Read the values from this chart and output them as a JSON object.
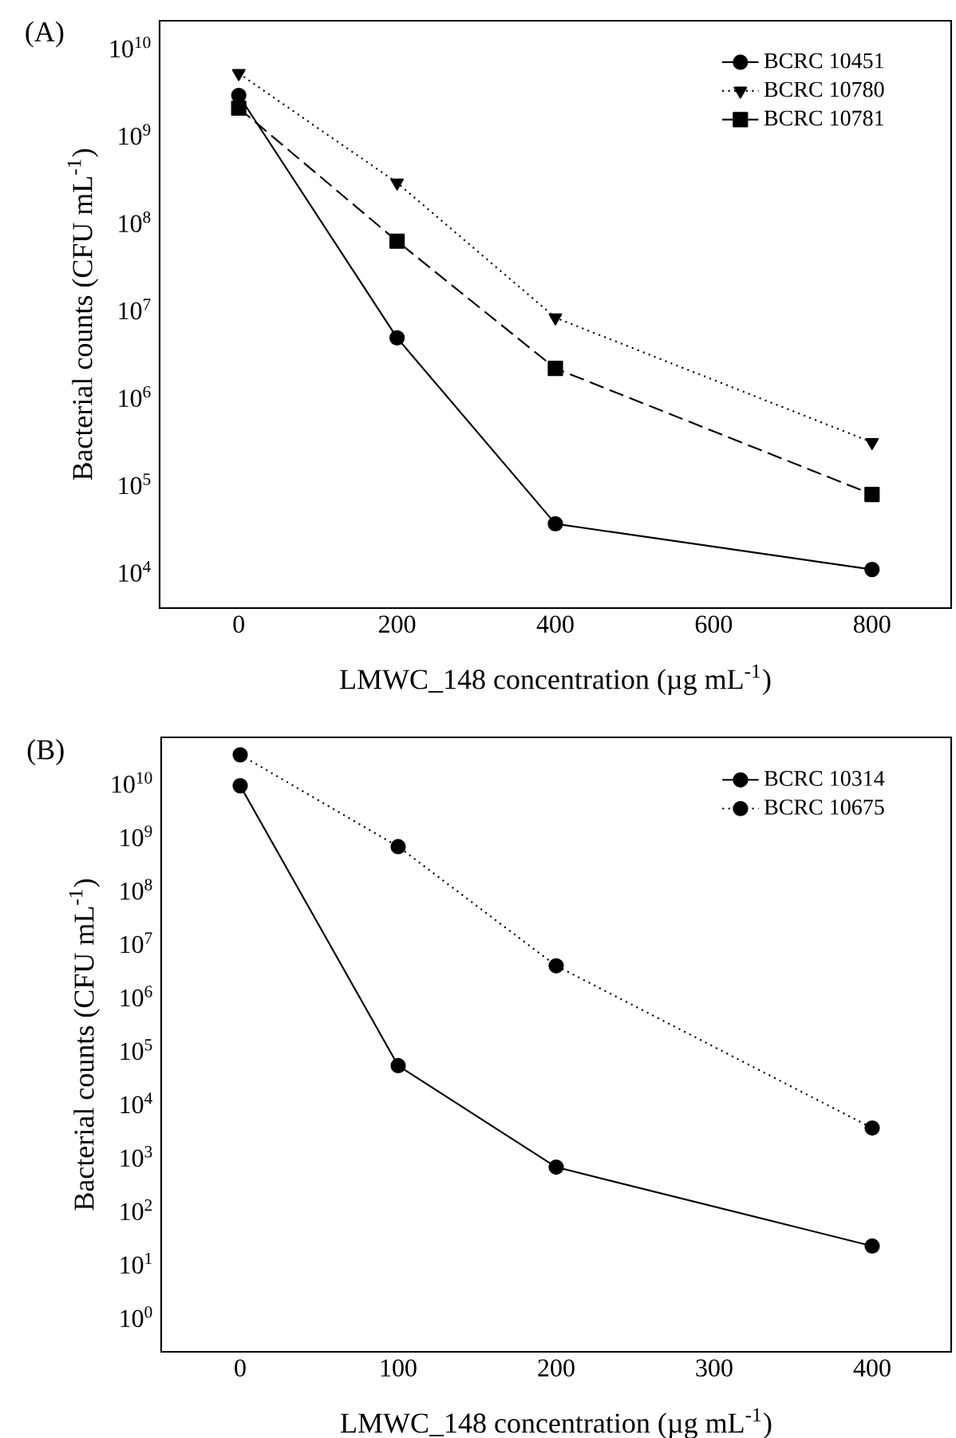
{
  "chart_data": [
    {
      "type": "line",
      "title": "(A)",
      "xlabel": "LMWC_148 concentration (µg  mL$^{-1}$)",
      "ylabel": "Bacterial counts (CFU mL$^{-1}$)",
      "log": "y",
      "x": [
        0,
        200,
        400,
        800
      ],
      "xlim": [
        -100,
        900
      ],
      "xticks": [
        0,
        200,
        400,
        600,
        800
      ],
      "ylim": [
        3800,
        20000000000
      ],
      "yticks": [
        {
          "value": 10000,
          "label": "10$^{4}$"
        },
        {
          "value": 100000,
          "label": "10$^{5}$"
        },
        {
          "value": 1000000,
          "label": "10$^{6}$"
        },
        {
          "value": 10000000,
          "label": "10$^{7}$"
        },
        {
          "value": 100000000,
          "label": "10$^{8}$"
        },
        {
          "value": 1000000000,
          "label": "10$^{9}$"
        },
        {
          "value": 10000000000,
          "label": "10$^{10}$"
        }
      ],
      "legend": "top right",
      "series": [
        {
          "name": "BCRC 10451",
          "color": "#000000",
          "marker": "circle",
          "line_style": "solid",
          "values": [
            2800000000,
            4700000,
            35000,
            10500
          ]
        },
        {
          "name": "BCRC 10780",
          "color": "#000000",
          "marker": "triangle",
          "line_style": "dotted",
          "values": [
            5000000000,
            280000000,
            8000000,
            300000
          ]
        },
        {
          "name": "BCRC 10781",
          "color": "#000000",
          "marker": "square",
          "line_style": "dashed",
          "values": [
            2000000000,
            60000000,
            2100000,
            76000
          ]
        }
      ]
    },
    {
      "type": "line",
      "title": "(B)",
      "xlabel": "LMWC_148 concentration (µg  mL$^{-1}$)",
      "ylabel": "Bacterial counts (CFU mL$^{-1}$)",
      "log": "y",
      "x": [
        0,
        100,
        200,
        400
      ],
      "xlim": [
        -50,
        450
      ],
      "xticks": [
        0,
        100,
        200,
        300,
        400
      ],
      "ylim": [
        0.22,
        70000000000
      ],
      "yticks": [
        {
          "value": 1,
          "label": "10$^{0}$"
        },
        {
          "value": 10,
          "label": "10$^{1}$"
        },
        {
          "value": 100,
          "label": "10$^{2}$"
        },
        {
          "value": 1000,
          "label": "10$^{3}$"
        },
        {
          "value": 10000,
          "label": "10$^{4}$"
        },
        {
          "value": 100000,
          "label": "10$^{5}$"
        },
        {
          "value": 1000000,
          "label": "10$^{6}$"
        },
        {
          "value": 10000000,
          "label": "10$^{7}$"
        },
        {
          "value": 100000000,
          "label": "10$^{8}$"
        },
        {
          "value": 1000000000,
          "label": "10$^{9}$"
        },
        {
          "value": 10000000000,
          "label": "10$^{10}$"
        }
      ],
      "legend": "top right",
      "series": [
        {
          "name": "BCRC 10314",
          "color": "#000000",
          "marker": "circle",
          "line_style": "solid",
          "values": [
            8700000000,
            50000,
            630,
            21
          ]
        },
        {
          "name": "BCRC 10675",
          "color": "#000000",
          "marker": "circle",
          "line_style": "dotted",
          "values": [
            33000000000,
            630000000,
            3700000,
            3400
          ]
        }
      ]
    }
  ]
}
